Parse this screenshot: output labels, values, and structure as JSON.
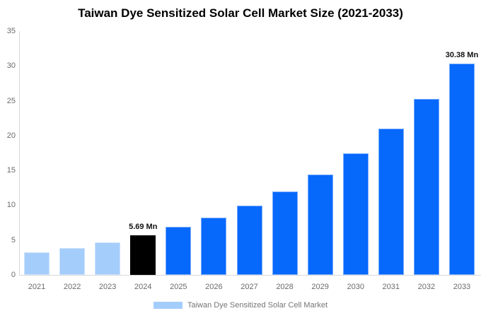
{
  "title": "Taiwan Dye Sensitized Solar Cell Market Size (2021-2033)",
  "chart_data": {
    "type": "bar",
    "title": "Taiwan Dye Sensitized Solar Cell Market Size (2021-2033)",
    "categories": [
      "2021",
      "2022",
      "2023",
      "2024",
      "2025",
      "2026",
      "2027",
      "2028",
      "2029",
      "2030",
      "2031",
      "2032",
      "2033"
    ],
    "values": [
      3.2,
      3.9,
      4.7,
      5.69,
      6.86,
      8.26,
      9.95,
      11.99,
      14.44,
      17.4,
      20.96,
      25.25,
      30.38
    ],
    "unit": "Mn",
    "xlabel": "",
    "ylabel": "",
    "ylim": [
      0,
      35
    ],
    "yticks": [
      0,
      5,
      10,
      15,
      20,
      25,
      30,
      35
    ],
    "grid": false,
    "bar_colors": [
      "#A4CDFB",
      "#A4CDFB",
      "#A4CDFB",
      "#000000",
      "#0768FC",
      "#0768FC",
      "#0768FC",
      "#0768FC",
      "#0768FC",
      "#0768FC",
      "#0768FC",
      "#0768FC",
      "#0768FC"
    ],
    "color_roles": {
      "historical": "#A4CDFB",
      "base_year": "#000000",
      "forecast": "#0768FC"
    },
    "annotations": [
      {
        "category": "2024",
        "text": "5.69 Mn"
      },
      {
        "category": "2033",
        "text": "30.38 Mn"
      }
    ],
    "legend": {
      "position": "bottom-center",
      "swatch_color": "#A4CDFB",
      "label": "Taiwan Dye Sensitized Solar Cell Market"
    },
    "axis_colors": {
      "axis_line": "#D8D8D8",
      "tick_text": "#6B6B6B",
      "legend_text": "#757575",
      "annotation_text": "#111111"
    }
  }
}
